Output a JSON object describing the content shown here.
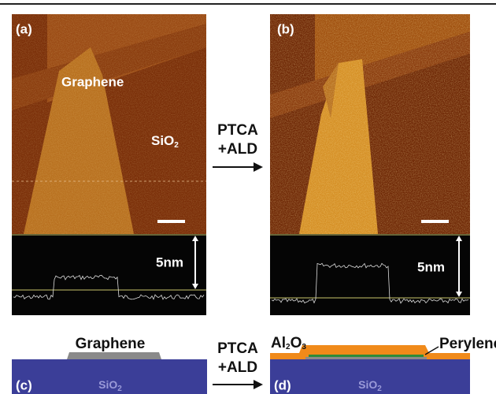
{
  "panel_a": {
    "label": "(a)",
    "flake_label": "Graphene",
    "substrate_label": {
      "base": "SiO",
      "sub": "2"
    },
    "scale_text": "5nm"
  },
  "panel_b": {
    "label": "(b)",
    "scale_text": "5nm"
  },
  "top_arrow": {
    "line1": "PTCA",
    "line2": "+ALD"
  },
  "panel_c": {
    "label": "(c)",
    "flake_label": "Graphene",
    "substrate_label": {
      "base": "SiO",
      "sub": "2"
    }
  },
  "bottom_arrow": {
    "line1": "PTCA",
    "line2": "+ALD"
  },
  "panel_d": {
    "label": "(d)",
    "oxide_label": {
      "base": "Al",
      "sub1": "2",
      "mid": "O",
      "sub2": "3"
    },
    "layer_label": "Perylene",
    "substrate_label": {
      "base": "SiO",
      "sub": "2"
    }
  }
}
